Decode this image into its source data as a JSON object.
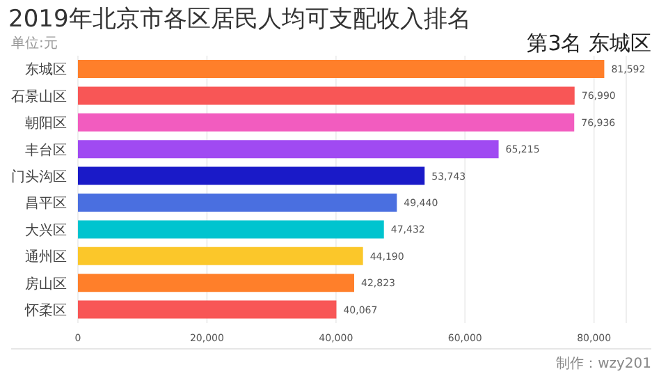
{
  "chart_data": {
    "type": "bar",
    "orientation": "horizontal",
    "title": "2019年北京市各区居民人均可支配收入排名",
    "subtitle": "单位:元",
    "annotations": [
      "第3名 东城区",
      "制作：wzy201"
    ],
    "categories": [
      "东城区",
      "石景山区",
      "朝阳区",
      "丰台区",
      "门头沟区",
      "昌平区",
      "大兴区",
      "通州区",
      "房山区",
      "怀柔区"
    ],
    "values": [
      81592,
      76990,
      76936,
      65215,
      53743,
      49440,
      47432,
      44190,
      42823,
      40067
    ],
    "value_labels": [
      "81,592",
      "76,990",
      "76,936",
      "65,215",
      "53,743",
      "49,440",
      "47,432",
      "44,190",
      "42,823",
      "40,067"
    ],
    "colors": [
      "#ff7f2a",
      "#f85656",
      "#f25cbf",
      "#a04af2",
      "#1a1ac8",
      "#4a6fe0",
      "#00c4cf",
      "#fbc72a",
      "#ff7f2a",
      "#f85656"
    ],
    "xlim": [
      0,
      85000
    ],
    "xticks": [
      0,
      {
        "value": 20000,
        "label": "20,000"
      },
      {
        "value": 40000,
        "label": "40,000"
      },
      {
        "value": 60000,
        "label": "60,000"
      },
      {
        "value": 80000,
        "label": "80,000"
      }
    ],
    "grid": "x",
    "legend": false
  }
}
